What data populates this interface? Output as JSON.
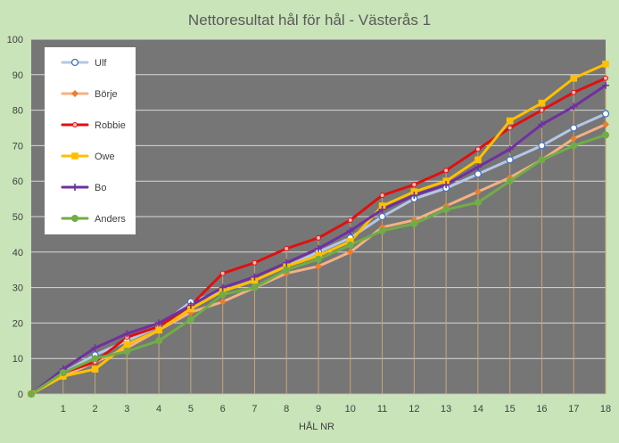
{
  "chart_data": {
    "type": "line",
    "title": "Nettoresultat hål för hål - Västerås 1",
    "xlabel": "HÅL NR",
    "ylabel": "",
    "x": [
      0,
      1,
      2,
      3,
      4,
      5,
      6,
      7,
      8,
      9,
      10,
      11,
      12,
      13,
      14,
      15,
      16,
      17,
      18
    ],
    "x_tick_labels": [
      "",
      "1",
      "2",
      "3",
      "4",
      "5",
      "6",
      "7",
      "8",
      "9",
      "10",
      "11",
      "12",
      "13",
      "14",
      "15",
      "16",
      "17",
      "18"
    ],
    "ylim": [
      0,
      100
    ],
    "yticks": [
      0,
      10,
      20,
      30,
      40,
      50,
      60,
      70,
      80,
      90,
      100
    ],
    "grid": "horizontal",
    "drop_lines": true,
    "legend_position": "top-left",
    "background_color": "#c9e4b9",
    "plot_background": "#767676",
    "series": [
      {
        "name": "Ulf",
        "color": "#b4c7e7",
        "marker": "circle-open",
        "values": [
          0,
          6,
          11,
          15,
          19,
          26,
          29,
          32,
          36,
          40,
          44,
          50,
          55,
          58,
          62,
          66,
          70,
          75,
          79
        ]
      },
      {
        "name": "Börje",
        "color": "#f4b183",
        "marker": "diamond",
        "values": [
          0,
          5,
          9,
          13,
          18,
          23,
          26,
          30,
          34,
          36,
          40,
          47,
          49,
          53,
          57,
          61,
          66,
          72,
          76
        ]
      },
      {
        "name": "Robbie",
        "color": "#e01010",
        "marker": "star",
        "values": [
          0,
          6,
          9,
          16,
          19,
          25,
          34,
          37,
          41,
          44,
          49,
          56,
          59,
          63,
          69,
          75,
          80,
          85,
          89
        ]
      },
      {
        "name": "Owe",
        "color": "#ffc000",
        "marker": "square",
        "values": [
          0,
          5,
          7,
          14,
          18,
          24,
          29,
          32,
          36,
          39,
          43,
          53,
          57,
          60,
          66,
          77,
          82,
          89,
          93
        ]
      },
      {
        "name": "Bo",
        "color": "#7030a0",
        "marker": "plus",
        "values": [
          0,
          7,
          13,
          17,
          20,
          25,
          30,
          33,
          37,
          41,
          46,
          52,
          56,
          59,
          64,
          69,
          76,
          81,
          87
        ]
      },
      {
        "name": "Anders",
        "color": "#70ad47",
        "marker": "circle",
        "values": [
          0,
          6,
          10,
          12,
          15,
          21,
          28,
          30,
          35,
          38,
          42,
          46,
          48,
          52,
          54,
          60,
          66,
          70,
          73
        ]
      }
    ]
  }
}
